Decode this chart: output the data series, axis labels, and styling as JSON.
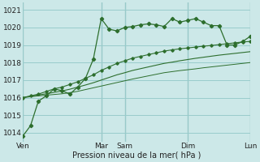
{
  "background_color": "#cce8e8",
  "grid_color": "#99cccc",
  "line_color": "#2d6e2d",
  "title": "Pression niveau de la mer( hPa )",
  "ylabel_values": [
    1014,
    1015,
    1016,
    1017,
    1018,
    1019,
    1020,
    1021
  ],
  "x_tick_labels": [
    "Ven",
    "Mar",
    "Sam",
    "Dim",
    "Lun"
  ],
  "x_tick_positions": [
    0,
    10,
    13,
    21,
    29
  ],
  "vline_positions": [
    0,
    10,
    13,
    21,
    29
  ],
  "series": [
    [
      1013.8,
      1014.4,
      1015.8,
      1016.1,
      1016.5,
      1016.4,
      1016.2,
      1016.6,
      1017.1,
      1018.2,
      1020.5,
      1019.9,
      1019.8,
      1020.0,
      1020.05,
      1020.15,
      1020.2,
      1020.15,
      1020.05,
      1020.5,
      1020.3,
      1020.4,
      1020.5,
      1020.3,
      1020.1,
      1020.1,
      1019.0,
      1019.0,
      1019.2,
      1019.5
    ],
    [
      1016.0,
      1016.1,
      1016.2,
      1016.35,
      1016.5,
      1016.6,
      1016.75,
      1016.9,
      1017.1,
      1017.3,
      1017.55,
      1017.75,
      1017.95,
      1018.1,
      1018.25,
      1018.35,
      1018.45,
      1018.55,
      1018.65,
      1018.72,
      1018.78,
      1018.83,
      1018.88,
      1018.93,
      1018.97,
      1019.02,
      1019.07,
      1019.12,
      1019.17,
      1019.2
    ],
    [
      1016.0,
      1016.08,
      1016.15,
      1016.22,
      1016.3,
      1016.38,
      1016.48,
      1016.6,
      1016.72,
      1016.85,
      1017.0,
      1017.15,
      1017.3,
      1017.42,
      1017.55,
      1017.65,
      1017.75,
      1017.85,
      1017.95,
      1018.02,
      1018.1,
      1018.17,
      1018.24,
      1018.3,
      1018.36,
      1018.42,
      1018.47,
      1018.52,
      1018.57,
      1018.62
    ],
    [
      1016.0,
      1016.05,
      1016.1,
      1016.14,
      1016.18,
      1016.22,
      1016.28,
      1016.36,
      1016.46,
      1016.56,
      1016.66,
      1016.76,
      1016.86,
      1016.96,
      1017.06,
      1017.15,
      1017.24,
      1017.33,
      1017.42,
      1017.48,
      1017.54,
      1017.59,
      1017.64,
      1017.7,
      1017.75,
      1017.8,
      1017.85,
      1017.9,
      1017.95,
      1018.0
    ]
  ],
  "ylim": [
    1013.5,
    1021.4
  ],
  "xlim": [
    0,
    29
  ]
}
